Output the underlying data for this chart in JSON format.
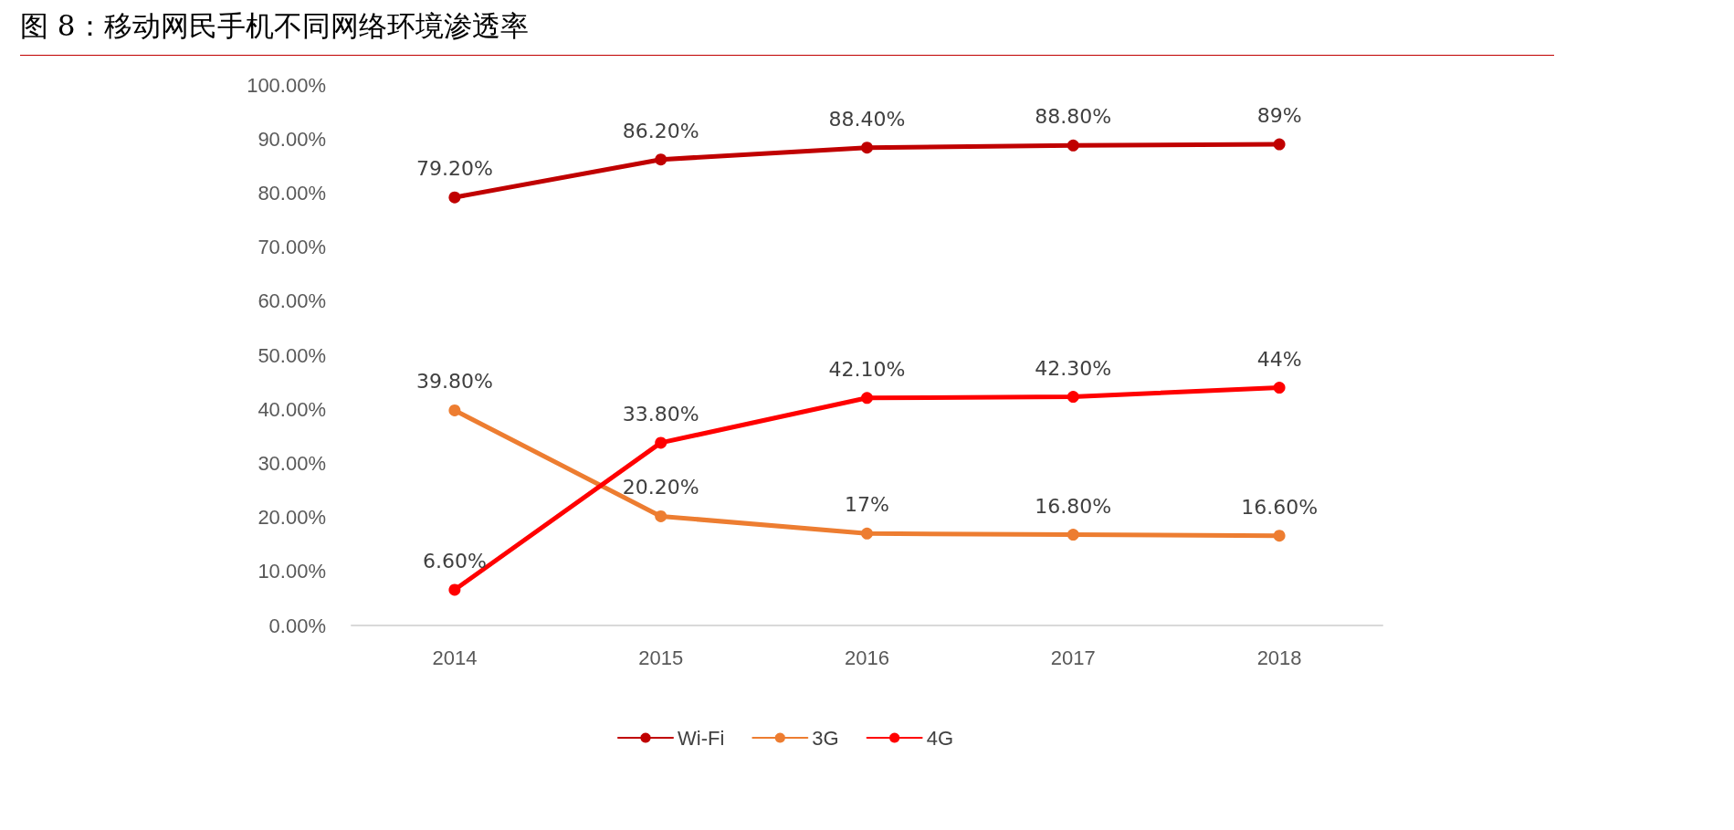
{
  "chart_data": {
    "type": "line",
    "title": "图 8：移动网民手机不同网络环境渗透率",
    "categories": [
      "2014",
      "2015",
      "2016",
      "2017",
      "2018"
    ],
    "series": [
      {
        "name": "Wi-Fi",
        "color": "#c00000",
        "values": [
          79.2,
          86.2,
          88.4,
          88.8,
          89
        ],
        "value_labels": [
          "79.20%",
          "86.20%",
          "88.40%",
          "88.80%",
          "89%"
        ]
      },
      {
        "name": "3G",
        "color": "#ed7d31",
        "values": [
          39.8,
          20.2,
          17,
          16.8,
          16.6
        ],
        "value_labels": [
          "39.80%",
          "20.20%",
          "17%",
          "16.80%",
          "16.60%"
        ]
      },
      {
        "name": "4G",
        "color": "#ff0000",
        "values": [
          6.6,
          33.8,
          42.1,
          42.3,
          44
        ],
        "value_labels": [
          "6.60%",
          "33.80%",
          "42.10%",
          "42.30%",
          "44%"
        ]
      }
    ],
    "ylim": [
      0,
      100
    ],
    "yticks": [
      {
        "value": 0,
        "label": "0.00%"
      },
      {
        "value": 10,
        "label": "10.00%"
      },
      {
        "value": 20,
        "label": "20.00%"
      },
      {
        "value": 30,
        "label": "30.00%"
      },
      {
        "value": 40,
        "label": "40.00%"
      },
      {
        "value": 50,
        "label": "50.00%"
      },
      {
        "value": 60,
        "label": "60.00%"
      },
      {
        "value": 70,
        "label": "70.00%"
      },
      {
        "value": 80,
        "label": "80.00%"
      },
      {
        "value": 90,
        "label": "90.00%"
      },
      {
        "value": 100,
        "label": "100.00%"
      }
    ],
    "grid": false,
    "legend": "bottom",
    "marker": "circle",
    "line_style": "solid"
  }
}
